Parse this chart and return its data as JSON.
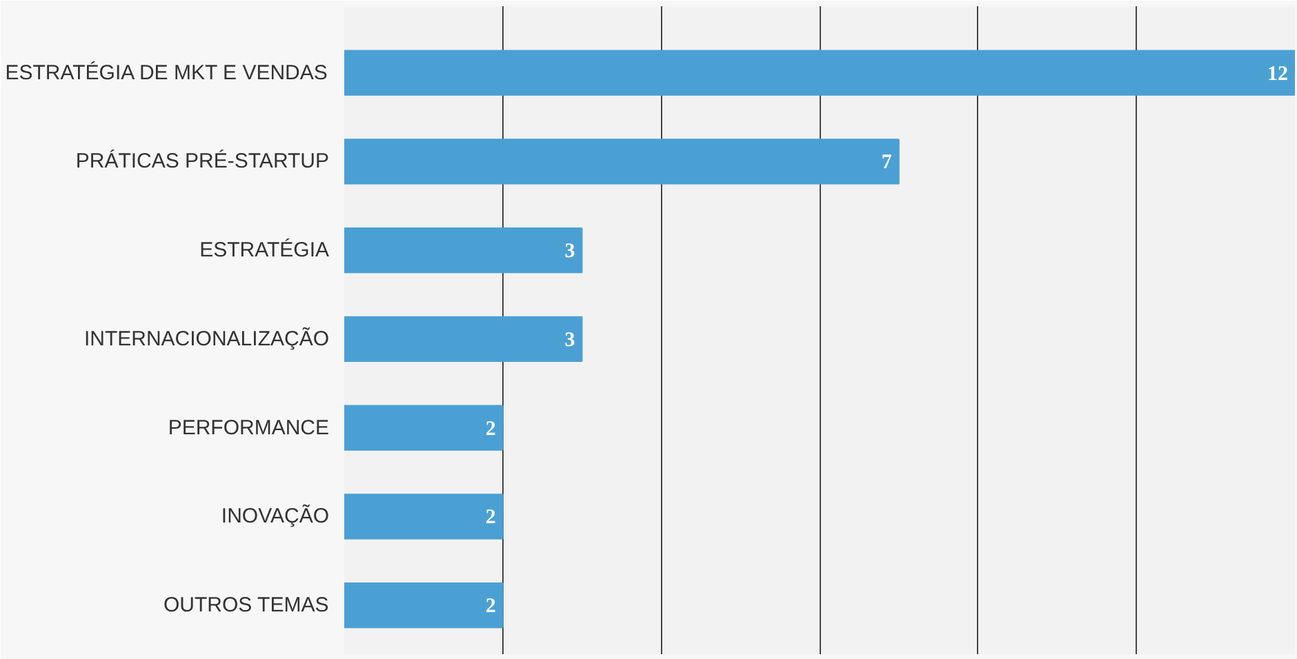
{
  "chart_data": {
    "type": "bar",
    "orientation": "horizontal",
    "categories": [
      "ESTRATÉGIA DE MKT E VENDAS",
      "PRÁTICAS PRÉ-STARTUP",
      "ESTRATÉGIA",
      "INTERNACIONALIZAÇÃO",
      "PERFORMANCE",
      "INOVAÇÃO",
      "OUTROS TEMAS"
    ],
    "values": [
      12,
      7,
      3,
      3,
      2,
      2,
      2
    ],
    "color": "#4ba0d3",
    "xlim": [
      0,
      12
    ],
    "xticks": [
      {
        "value": 0,
        "label": null
      },
      {
        "value": 2,
        "label": null
      },
      {
        "value": 4,
        "label": null
      },
      {
        "value": 6,
        "label": null
      },
      {
        "value": 8,
        "label": null
      },
      {
        "value": 10,
        "label": null
      }
    ],
    "grid": "x",
    "data_labels": true
  }
}
